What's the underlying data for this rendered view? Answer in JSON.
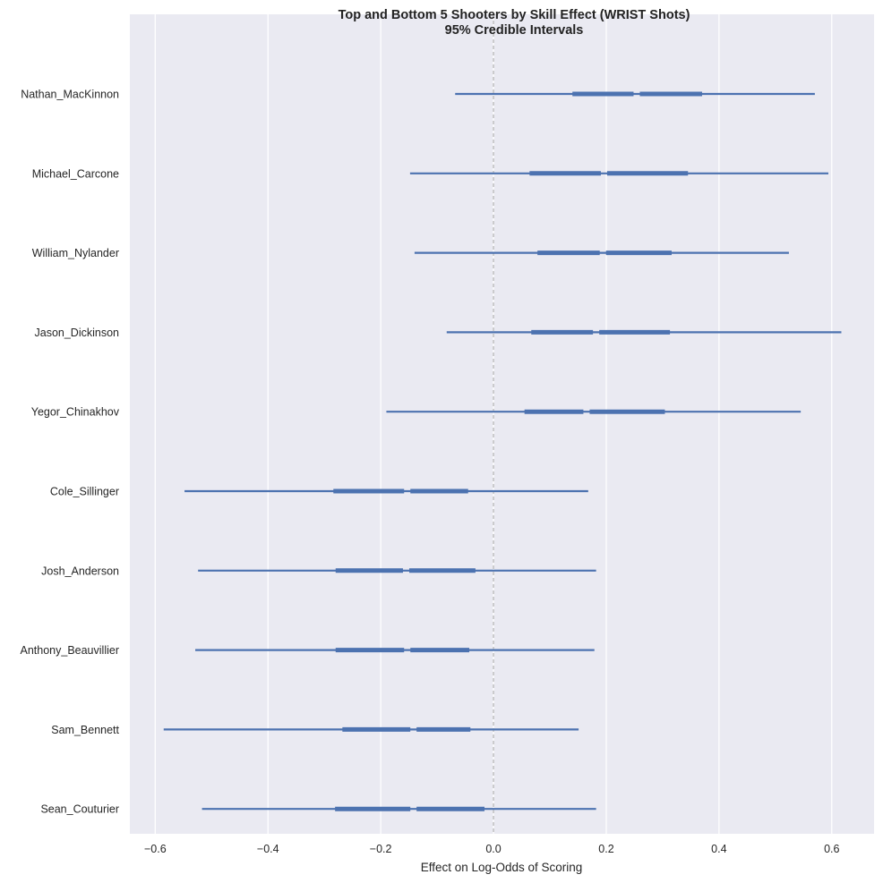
{
  "chart_data": {
    "type": "interval",
    "title": "Top and Bottom 5 Shooters by Skill Effect (WRIST Shots)",
    "subtitle": "95% Credible Intervals",
    "xlabel": "Effect on Log-Odds of Scoring",
    "ylabel": "",
    "xlim": [
      -0.645,
      0.675
    ],
    "xticks": [
      -0.6,
      -0.4,
      -0.2,
      0.0,
      0.2,
      0.4,
      0.6
    ],
    "xtick_labels": [
      "−0.6",
      "−0.4",
      "−0.2",
      "0.0",
      "0.2",
      "0.4",
      "0.6"
    ],
    "reference_line": 0.0,
    "grid": "vertical",
    "colors": {
      "interval": "#4c72b0",
      "background": "#eaeaf2",
      "grid": "#ffffff",
      "reference": "#b3b3b3"
    },
    "players": [
      {
        "name": "Nathan_MacKinnon",
        "lo95": -0.068,
        "lo50": 0.14,
        "median": 0.254,
        "hi50": 0.37,
        "hi95": 0.57
      },
      {
        "name": "Michael_Carcone",
        "lo95": -0.148,
        "lo50": 0.064,
        "median": 0.196,
        "hi50": 0.345,
        "hi95": 0.594
      },
      {
        "name": "William_Nylander",
        "lo95": -0.14,
        "lo50": 0.078,
        "median": 0.194,
        "hi50": 0.316,
        "hi95": 0.524
      },
      {
        "name": "Jason_Dickinson",
        "lo95": -0.083,
        "lo50": 0.067,
        "median": 0.182,
        "hi50": 0.313,
        "hi95": 0.617
      },
      {
        "name": "Yegor_Chinakhov",
        "lo95": -0.19,
        "lo50": 0.055,
        "median": 0.165,
        "hi50": 0.304,
        "hi95": 0.545
      },
      {
        "name": "Cole_Sillinger",
        "lo95": -0.548,
        "lo50": -0.284,
        "median": -0.153,
        "hi50": -0.045,
        "hi95": 0.168
      },
      {
        "name": "Josh_Anderson",
        "lo95": -0.524,
        "lo50": -0.28,
        "median": -0.155,
        "hi50": -0.032,
        "hi95": 0.182
      },
      {
        "name": "Anthony_Beauvillier",
        "lo95": -0.529,
        "lo50": -0.28,
        "median": -0.153,
        "hi50": -0.043,
        "hi95": 0.179
      },
      {
        "name": "Sam_Bennett",
        "lo95": -0.585,
        "lo50": -0.268,
        "median": -0.142,
        "hi50": -0.041,
        "hi95": 0.151
      },
      {
        "name": "Sean_Couturier",
        "lo95": -0.517,
        "lo50": -0.281,
        "median": -0.142,
        "hi50": -0.016,
        "hi95": 0.182
      }
    ]
  }
}
